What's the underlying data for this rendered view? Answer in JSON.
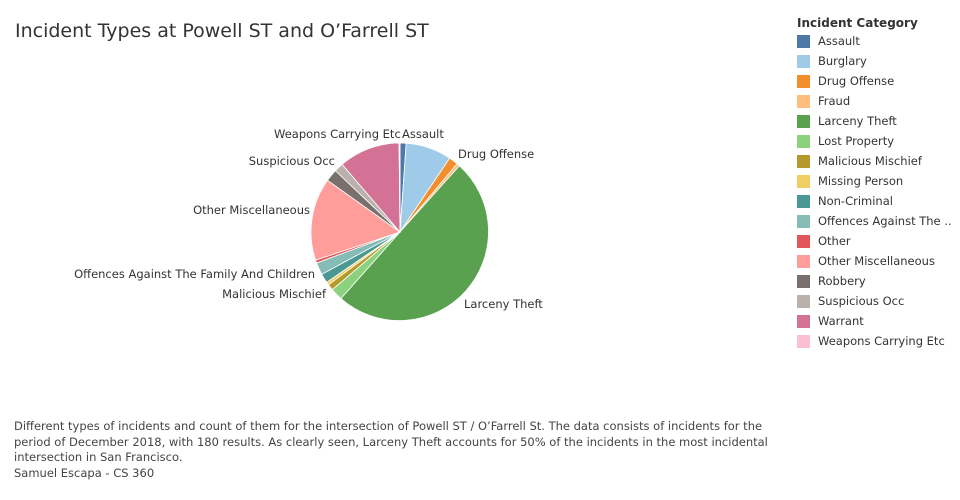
{
  "chart_data": {
    "type": "pie",
    "title": "Incident Types at Powell ST and O’Farrell ST",
    "legend_title": "Incident Category",
    "legend_position": "right",
    "slices": [
      {
        "name": "Assault",
        "value": 2,
        "color": "#4e79a7"
      },
      {
        "name": "Burglary",
        "value": 15,
        "color": "#a0cbe8"
      },
      {
        "name": "Drug Offense",
        "value": 3,
        "color": "#f28e2b"
      },
      {
        "name": "Fraud",
        "value": 1,
        "color": "#ffbe7d"
      },
      {
        "name": "Larceny Theft",
        "value": 90,
        "color": "#59a14f"
      },
      {
        "name": "Lost Property",
        "value": 4,
        "color": "#8cd17d"
      },
      {
        "name": "Malicious Mischief",
        "value": 2,
        "color": "#b6992d"
      },
      {
        "name": "Missing Person",
        "value": 1,
        "color": "#f1ce63"
      },
      {
        "name": "Non-Criminal",
        "value": 3,
        "color": "#499894"
      },
      {
        "name": "Offences Against The Family And Children",
        "value": 4,
        "color": "#86bcb6"
      },
      {
        "name": "Other",
        "value": 1,
        "color": "#e15759"
      },
      {
        "name": "Other Miscellaneous",
        "value": 27,
        "color": "#ff9d9a"
      },
      {
        "name": "Robbery",
        "value": 4,
        "color": "#79706e"
      },
      {
        "name": "Suspicious Occ",
        "value": 3,
        "color": "#bab0ac"
      },
      {
        "name": "Warrant",
        "value": 20,
        "color": "#d37295"
      },
      {
        "name": "Weapons Carrying Etc",
        "value": 0.3,
        "color": "#fabfd2"
      }
    ],
    "labels": [
      {
        "text": "Weapons Carrying Etc",
        "anchor": "start"
      },
      {
        "text": "Assault",
        "anchor": "start"
      },
      {
        "text": "Drug Offense",
        "anchor": "start"
      },
      {
        "text": "Suspicious Occ",
        "anchor": "end"
      },
      {
        "text": "Other Miscellaneous",
        "anchor": "end"
      },
      {
        "text": "Offences Against The Family And Children",
        "anchor": "end"
      },
      {
        "text": "Malicious Mischief",
        "anchor": "end"
      },
      {
        "text": "Larceny Theft",
        "anchor": "start"
      }
    ]
  },
  "legend": {
    "title": "Incident Category",
    "items": [
      {
        "label": "Assault",
        "color": "#4e79a7"
      },
      {
        "label": "Burglary",
        "color": "#a0cbe8"
      },
      {
        "label": "Drug Offense",
        "color": "#f28e2b"
      },
      {
        "label": "Fraud",
        "color": "#ffbe7d"
      },
      {
        "label": "Larceny Theft",
        "color": "#59a14f"
      },
      {
        "label": "Lost Property",
        "color": "#8cd17d"
      },
      {
        "label": "Malicious Mischief",
        "color": "#b6992d"
      },
      {
        "label": "Missing Person",
        "color": "#f1ce63"
      },
      {
        "label": "Non-Criminal",
        "color": "#499894"
      },
      {
        "label": "Offences Against The ..",
        "color": "#86bcb6"
      },
      {
        "label": "Other",
        "color": "#e15759"
      },
      {
        "label": "Other Miscellaneous",
        "color": "#ff9d9a"
      },
      {
        "label": "Robbery",
        "color": "#79706e"
      },
      {
        "label": "Suspicious Occ",
        "color": "#bab0ac"
      },
      {
        "label": "Warrant",
        "color": "#d37295"
      },
      {
        "label": "Weapons Carrying Etc",
        "color": "#fabfd2"
      }
    ]
  },
  "caption": {
    "text": "Different types of incidents and count of them for the intersection of Powell ST / O’Farrell St. The data consists of incidents for the period of December 2018, with 180 results. As clearly seen, Larceny Theft accounts for 50% of the incidents in the most incidental intersection in San Francisco.",
    "author": "Samuel Escapa - CS 360"
  }
}
